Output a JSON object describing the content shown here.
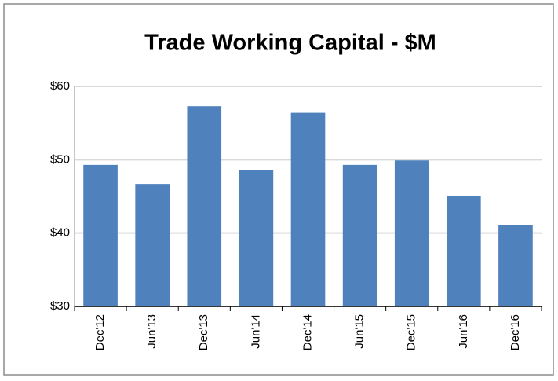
{
  "chart_data": {
    "type": "bar",
    "title": "Trade Working Capital - $M",
    "categories": [
      "Dec'12",
      "Jun'13",
      "Dec'13",
      "Jun'14",
      "Dec'14",
      "Jun'15",
      "Dec'15",
      "Jun'16",
      "Dec'16"
    ],
    "values": [
      49.3,
      46.7,
      57.3,
      48.6,
      56.4,
      49.3,
      49.9,
      45.0,
      41.1
    ],
    "color": "#4f81bd",
    "ylim": [
      30,
      60
    ],
    "yticks": [
      {
        "value": 30,
        "label": "$30"
      },
      {
        "value": 40,
        "label": "$40"
      },
      {
        "value": 50,
        "label": "$50"
      },
      {
        "value": 60,
        "label": "$60"
      }
    ],
    "grid": true
  }
}
